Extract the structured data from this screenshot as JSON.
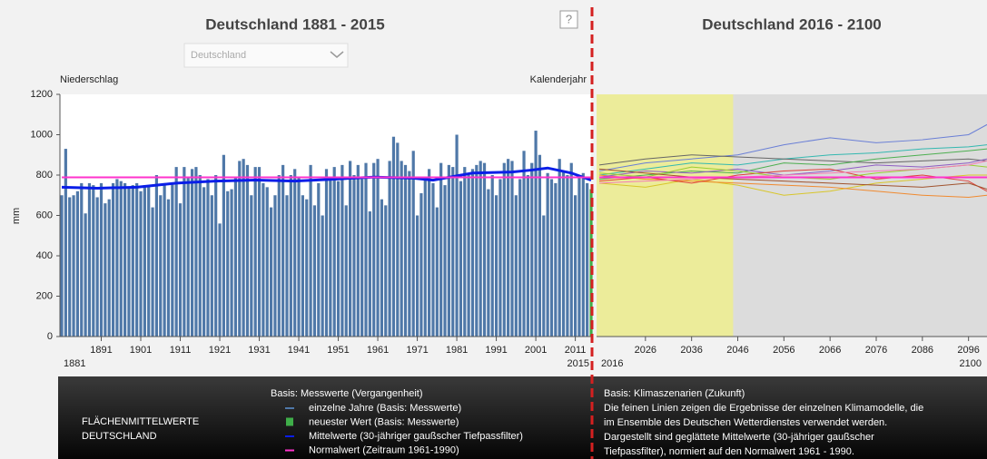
{
  "header": {
    "left_title": "Deutschland 1881 - 2015",
    "right_title": "Deutschland 2016 - 2100",
    "dropdown": "Deutschland",
    "help": "?"
  },
  "chart_data": [
    {
      "type": "bar",
      "y_label_top": "Niederschlag",
      "x_label": "Kalenderjahr",
      "ylabel": "mm",
      "xlim": [
        1881,
        2015
      ],
      "xticks": [
        1891,
        1901,
        1911,
        1921,
        1931,
        1941,
        1951,
        1961,
        1971,
        1981,
        1991,
        2001,
        2011
      ],
      "ylim": [
        0,
        1200
      ],
      "yticks": [
        0,
        200,
        400,
        600,
        800,
        1000,
        1200
      ],
      "series": [
        {
          "name": "einzelne Jahre (Basis: Messwerte)",
          "kind": "bar",
          "color": "#4f78a8",
          "x": [
            1881,
            1882,
            1883,
            1884,
            1885,
            1886,
            1887,
            1888,
            1889,
            1890,
            1891,
            1892,
            1893,
            1894,
            1895,
            1896,
            1897,
            1898,
            1899,
            1900,
            1901,
            1902,
            1903,
            1904,
            1905,
            1906,
            1907,
            1908,
            1909,
            1910,
            1911,
            1912,
            1913,
            1914,
            1915,
            1916,
            1917,
            1918,
            1919,
            1920,
            1921,
            1922,
            1923,
            1924,
            1925,
            1926,
            1927,
            1928,
            1929,
            1930,
            1931,
            1932,
            1933,
            1934,
            1935,
            1936,
            1937,
            1938,
            1939,
            1940,
            1941,
            1942,
            1943,
            1944,
            1945,
            1946,
            1947,
            1948,
            1949,
            1950,
            1951,
            1952,
            1953,
            1954,
            1955,
            1956,
            1957,
            1958,
            1959,
            1960,
            1961,
            1962,
            1963,
            1964,
            1965,
            1966,
            1967,
            1968,
            1969,
            1970,
            1971,
            1972,
            1973,
            1974,
            1975,
            1976,
            1977,
            1978,
            1979,
            1980,
            1981,
            1982,
            1983,
            1984,
            1985,
            1986,
            1987,
            1988,
            1989,
            1990,
            1991,
            1992,
            1993,
            1994,
            1995,
            1996,
            1997,
            1998,
            1999,
            2000,
            2001,
            2002,
            2003,
            2004,
            2005,
            2006,
            2007,
            2008,
            2009,
            2010,
            2011,
            2012,
            2013,
            2014
          ],
          "values": [
            700,
            930,
            690,
            700,
            720,
            760,
            610,
            760,
            750,
            690,
            760,
            660,
            680,
            760,
            780,
            770,
            760,
            740,
            750,
            760,
            720,
            750,
            750,
            640,
            800,
            700,
            760,
            680,
            760,
            840,
            660,
            840,
            790,
            830,
            840,
            800,
            740,
            780,
            700,
            800,
            560,
            900,
            720,
            730,
            790,
            870,
            880,
            850,
            700,
            840,
            840,
            760,
            740,
            640,
            700,
            800,
            850,
            700,
            800,
            830,
            790,
            700,
            680,
            850,
            650,
            760,
            600,
            830,
            780,
            840,
            770,
            850,
            650,
            870,
            800,
            850,
            780,
            860,
            620,
            860,
            880,
            680,
            650,
            870,
            990,
            960,
            870,
            850,
            820,
            920,
            600,
            710,
            780,
            830,
            760,
            640,
            860,
            750,
            850,
            840,
            1000,
            770,
            840,
            800,
            830,
            850,
            870,
            860,
            730,
            800,
            700,
            780,
            860,
            880,
            870,
            700,
            780,
            920,
            800,
            860,
            1020,
            900,
            600,
            810,
            780,
            760,
            880,
            820,
            800,
            860,
            700,
            790,
            810,
            760
          ]
        },
        {
          "name": "neuester Wert (Basis: Messwerte)",
          "kind": "bar",
          "color": "#3fae49",
          "x": [
            2015
          ],
          "values": [
            730
          ]
        },
        {
          "name": "Mittelwerte (30-jähriger gaußscher Tiefpassfilter)",
          "kind": "line",
          "color": "#0a1ee8",
          "x": [
            1881,
            1890,
            1900,
            1910,
            1920,
            1930,
            1940,
            1950,
            1960,
            1970,
            1975,
            1985,
            1995,
            2000,
            2004,
            2010,
            2015
          ],
          "values": [
            740,
            735,
            740,
            760,
            770,
            775,
            770,
            780,
            790,
            785,
            775,
            810,
            815,
            825,
            835,
            810,
            775
          ]
        },
        {
          "name": "Normalwert (Zeitraum 1961-1990)",
          "kind": "line",
          "color": "#ff33cc",
          "x": [
            1881,
            2015
          ],
          "values": [
            789,
            789
          ]
        }
      ]
    },
    {
      "type": "line",
      "xlim": [
        2016,
        2100
      ],
      "xticks": [
        2026,
        2036,
        2046,
        2056,
        2066,
        2076,
        2086,
        2096
      ],
      "ylim": [
        0,
        1200
      ],
      "highlight": {
        "xmin": 2016,
        "xmax": 2045,
        "color": "#ecec9a"
      },
      "series": [
        {
          "color": "#6a7fd6",
          "x": [
            2016,
            2026,
            2036,
            2046,
            2056,
            2066,
            2076,
            2086,
            2096,
            2100
          ],
          "values": [
            820,
            860,
            880,
            900,
            950,
            985,
            960,
            975,
            1000,
            1050
          ]
        },
        {
          "color": "#33b8b0",
          "x": [
            2016,
            2026,
            2036,
            2046,
            2056,
            2066,
            2076,
            2086,
            2096,
            2100
          ],
          "values": [
            800,
            830,
            860,
            850,
            880,
            900,
            910,
            930,
            940,
            950
          ]
        },
        {
          "color": "#666666",
          "x": [
            2016,
            2026,
            2036,
            2046,
            2056,
            2066,
            2076,
            2086,
            2096,
            2100
          ],
          "values": [
            850,
            880,
            900,
            890,
            880,
            870,
            860,
            870,
            880,
            870
          ]
        },
        {
          "color": "#4caf50",
          "x": [
            2016,
            2026,
            2036,
            2046,
            2056,
            2066,
            2076,
            2086,
            2096,
            2100
          ],
          "values": [
            780,
            800,
            820,
            810,
            860,
            850,
            880,
            900,
            920,
            930
          ]
        },
        {
          "color": "#d8c62a",
          "x": [
            2016,
            2026,
            2036,
            2046,
            2056,
            2066,
            2076,
            2086,
            2096,
            2100
          ],
          "values": [
            760,
            740,
            780,
            750,
            700,
            720,
            760,
            780,
            800,
            800
          ]
        },
        {
          "color": "#f08a30",
          "x": [
            2016,
            2026,
            2036,
            2046,
            2056,
            2066,
            2076,
            2086,
            2096,
            2100
          ],
          "values": [
            800,
            780,
            770,
            760,
            750,
            740,
            720,
            700,
            690,
            700
          ]
        },
        {
          "color": "#8e5cc4",
          "x": [
            2016,
            2026,
            2036,
            2046,
            2056,
            2066,
            2076,
            2086,
            2096,
            2100
          ],
          "values": [
            790,
            820,
            810,
            830,
            800,
            820,
            850,
            840,
            860,
            880
          ]
        },
        {
          "color": "#e0403a",
          "x": [
            2016,
            2026,
            2036,
            2046,
            2056,
            2066,
            2076,
            2086,
            2096,
            2100
          ],
          "values": [
            770,
            790,
            760,
            800,
            820,
            830,
            780,
            800,
            770,
            720
          ]
        },
        {
          "color": "#9acd32",
          "x": [
            2016,
            2026,
            2036,
            2046,
            2056,
            2066,
            2076,
            2086,
            2096,
            2100
          ],
          "values": [
            810,
            790,
            840,
            820,
            790,
            780,
            810,
            830,
            850,
            840
          ]
        },
        {
          "color": "#a0522d",
          "x": [
            2016,
            2026,
            2036,
            2046,
            2056,
            2066,
            2076,
            2086,
            2096,
            2100
          ],
          "values": [
            830,
            810,
            790,
            780,
            770,
            760,
            750,
            740,
            760,
            730
          ]
        },
        {
          "color": "#f47ab8",
          "x": [
            2016,
            2026,
            2036,
            2046,
            2056,
            2066,
            2076,
            2086,
            2096,
            2100
          ],
          "values": [
            760,
            770,
            780,
            790,
            800,
            810,
            820,
            830,
            850,
            870
          ]
        },
        {
          "color": "#ff33cc",
          "x": [
            2016,
            2100
          ],
          "values": [
            789,
            789
          ]
        }
      ]
    }
  ],
  "legend": {
    "panel_title": [
      "FLÄCHENMITTELWERTE",
      "DEUTSCHLAND"
    ],
    "past_heading": "Basis: Messwerte (Vergangenheit)",
    "future_heading": "Basis: Klimaszenarien (Zukunft)",
    "future_text": [
      "Die feinen Linien zeigen die Ergebnisse der einzelnen Klimamodelle, die",
      "im Ensemble des Deutschen Wetterdienstes verwendet werden.",
      "Dargestellt sind geglättete Mittelwerte (30-jähriger gaußscher",
      "Tiefpassfilter), normiert auf den Normalwert 1961 - 1990."
    ]
  }
}
